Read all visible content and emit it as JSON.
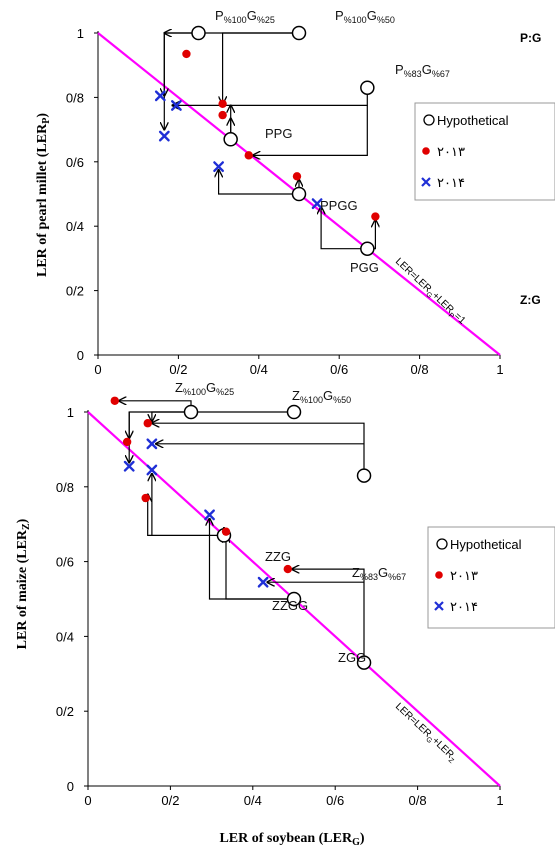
{
  "chart_data": [
    {
      "type": "scatter",
      "panel_tag": "P:G",
      "ylabel": "LER of pearl millet (LER",
      "ylabel_sub": "P",
      "ylabel_close": ")",
      "xlim": [
        0,
        1
      ],
      "ylim": [
        0,
        1
      ],
      "x_ticks": [
        "0",
        "0/2",
        "0/4",
        "0/6",
        "0/8",
        "1"
      ],
      "y_ticks": [
        "0",
        "0/2",
        "0/4",
        "0/6",
        "0/8",
        "1"
      ],
      "diagonal_label": {
        "a": "LER=LER",
        "s1": "G",
        "b": "+LER",
        "s2": "P",
        "c": "=1"
      },
      "legend": {
        "hypothetical": "Hypothetical",
        "s2013": "۲۰۱۳",
        "s2014": "۲۰۱۴"
      },
      "hypothetical": [
        {
          "x": 0.25,
          "y": 1.0,
          "label": "P%100G%25"
        },
        {
          "x": 0.5,
          "y": 1.0,
          "label": "P%100G%50"
        },
        {
          "x": 0.67,
          "y": 0.83,
          "label": "P%83G%67"
        },
        {
          "x": 0.33,
          "y": 0.67,
          "label": "PPG"
        },
        {
          "x": 0.5,
          "y": 0.5,
          "label": "PPGG"
        },
        {
          "x": 0.67,
          "y": 0.33,
          "label": "PGG"
        }
      ],
      "s2013": [
        [
          0.22,
          0.935
        ],
        [
          0.31,
          0.78
        ],
        [
          0.31,
          0.745
        ],
        [
          0.375,
          0.62
        ],
        [
          0.495,
          0.555
        ],
        [
          0.69,
          0.43
        ]
      ],
      "s2014": [
        [
          0.155,
          0.805
        ],
        [
          0.165,
          0.68
        ],
        [
          0.195,
          0.775
        ],
        [
          0.3,
          0.585
        ],
        [
          0.545,
          0.47
        ]
      ],
      "point_labels": [
        {
          "text": "P",
          "sub1": "%100",
          "mid": "G",
          "sub2": "%25"
        },
        {
          "text": "P",
          "sub1": "%100",
          "mid": "G",
          "sub2": "%50"
        },
        {
          "text": "P",
          "sub1": "%83",
          "mid": "G",
          "sub2": "%67"
        },
        {
          "text": "PPG"
        },
        {
          "text": "PPGG"
        },
        {
          "text": "PGG"
        }
      ]
    },
    {
      "type": "scatter",
      "panel_tag": "Z:G",
      "ylabel": "LER of maize (LER",
      "ylabel_sub": "Z",
      "ylabel_close": ")",
      "xlabel": "LER of soybean (LER",
      "xlabel_sub": "G",
      "xlabel_close": ")",
      "xlim": [
        0,
        1
      ],
      "ylim": [
        0,
        1
      ],
      "x_ticks": [
        "0",
        "0/2",
        "0/4",
        "0/6",
        "0/8",
        "1"
      ],
      "y_ticks": [
        "0",
        "0/2",
        "0/4",
        "0/6",
        "0/8",
        "1"
      ],
      "diagonal_label": {
        "a": "LER=LER",
        "s1": "G",
        "b": "+LER",
        "s2": "Z",
        "c": ""
      },
      "legend": {
        "hypothetical": "Hypothetical",
        "s2013": "۲۰۱۳",
        "s2014": "۲۰۱۴"
      },
      "hypothetical": [
        {
          "x": 0.25,
          "y": 1.0,
          "label": "Z%100G%25"
        },
        {
          "x": 0.5,
          "y": 1.0,
          "label": "Z%100G%50"
        },
        {
          "x": 0.67,
          "y": 0.83,
          "label": "Z%83G%67"
        },
        {
          "x": 0.33,
          "y": 0.67,
          "label": "ZZG"
        },
        {
          "x": 0.5,
          "y": 0.5,
          "label": "ZZGG"
        },
        {
          "x": 0.67,
          "y": 0.33,
          "label": "ZGG"
        }
      ],
      "s2013": [
        [
          0.065,
          1.03
        ],
        [
          0.145,
          0.97
        ],
        [
          0.095,
          0.92
        ],
        [
          0.14,
          0.77
        ],
        [
          0.335,
          0.68
        ],
        [
          0.485,
          0.58
        ]
      ],
      "s2014": [
        [
          0.1,
          0.855
        ],
        [
          0.155,
          0.845
        ],
        [
          0.155,
          0.915
        ],
        [
          0.295,
          0.725
        ],
        [
          0.425,
          0.545
        ]
      ],
      "point_labels": [
        {
          "text": "Z",
          "sub1": "%100",
          "mid": "G",
          "sub2": "%25"
        },
        {
          "text": "Z",
          "sub1": "%100",
          "mid": "G",
          "sub2": "%50"
        },
        {
          "text": "Z",
          "sub1": "%83",
          "mid": "G",
          "sub2": "%67"
        },
        {
          "text": "ZZG"
        },
        {
          "text": "ZZGG"
        },
        {
          "text": "ZGG"
        }
      ]
    }
  ]
}
